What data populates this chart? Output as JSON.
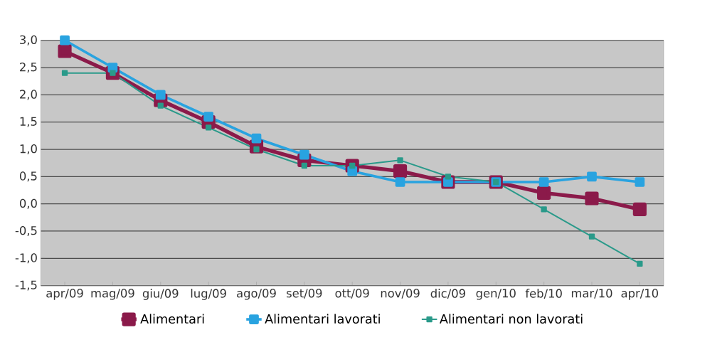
{
  "chart_data": {
    "type": "line",
    "categories": [
      "apr/09",
      "mag/09",
      "giu/09",
      "lug/09",
      "ago/09",
      "set/09",
      "ott/09",
      "nov/09",
      "dic/09",
      "gen/10",
      "feb/10",
      "mar/10",
      "apr/10"
    ],
    "series": [
      {
        "name": "Alimentari",
        "color": "#8b1a4a",
        "values": [
          2.8,
          2.4,
          1.9,
          1.5,
          1.05,
          0.8,
          0.7,
          0.6,
          0.4,
          0.4,
          0.2,
          0.1,
          -0.1
        ]
      },
      {
        "name": "Alimentari lavorati",
        "color": "#29a3e0",
        "values": [
          3.0,
          2.5,
          2.0,
          1.6,
          1.2,
          0.9,
          0.6,
          0.4,
          0.4,
          0.4,
          0.4,
          0.5,
          0.4
        ]
      },
      {
        "name": "Alimentari non lavorati",
        "color": "#2a9a8a",
        "values": [
          2.4,
          2.4,
          1.8,
          1.4,
          1.0,
          0.7,
          0.7,
          0.8,
          0.5,
          0.4,
          -0.1,
          -0.6,
          -1.1
        ]
      }
    ],
    "ylim": [
      -1.5,
      3.0
    ],
    "yticks": [
      {
        "value": -1.5,
        "label": "-1,5"
      },
      {
        "value": -1.0,
        "label": "-1,0"
      },
      {
        "value": -0.5,
        "label": "-0,5"
      },
      {
        "value": 0.0,
        "label": "0,0"
      },
      {
        "value": 0.5,
        "label": "0,5"
      },
      {
        "value": 1.0,
        "label": "1,0"
      },
      {
        "value": 1.5,
        "label": "1,5"
      },
      {
        "value": 2.0,
        "label": "2,0"
      },
      {
        "value": 2.5,
        "label": "2,5"
      },
      {
        "value": 3.0,
        "label": "3,0"
      }
    ],
    "grid": "y",
    "legend": "bottom",
    "marker": "square",
    "line_style": "solid"
  }
}
